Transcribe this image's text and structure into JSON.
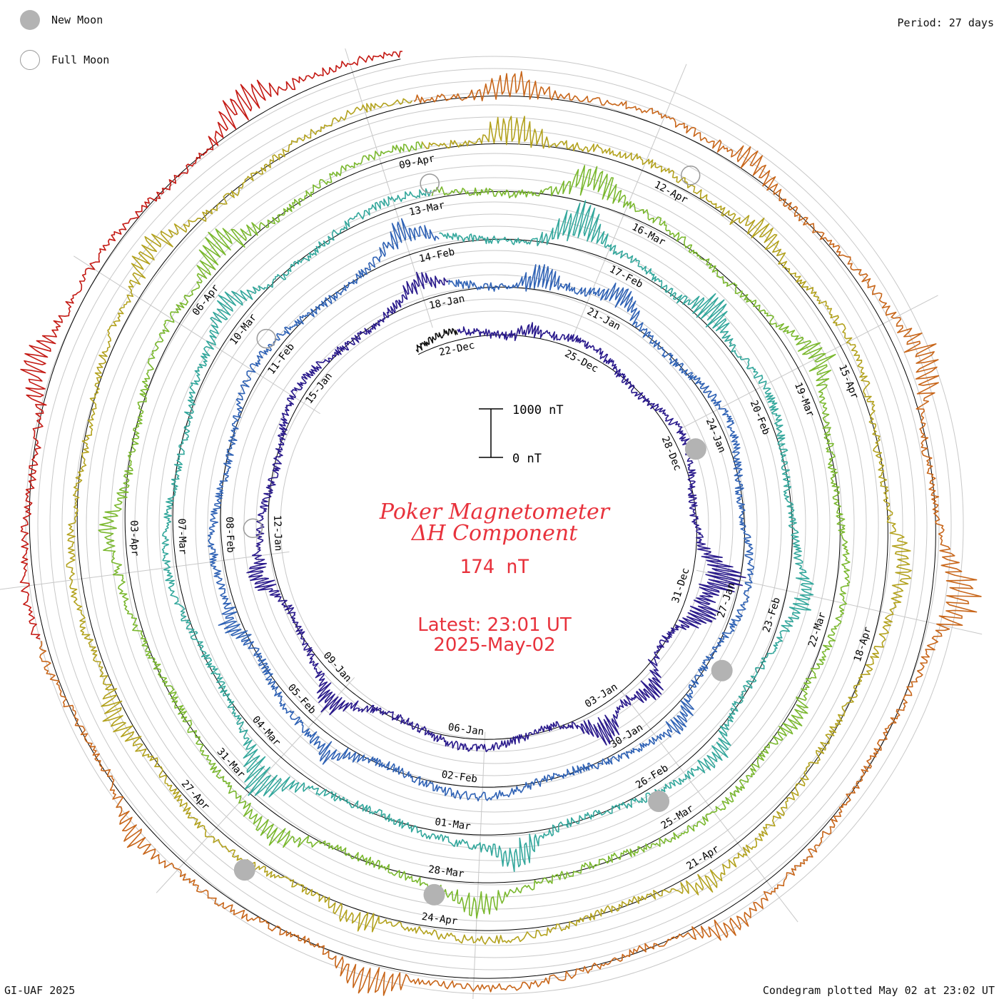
{
  "header": {
    "period": "Period: 27 days"
  },
  "legend": {
    "new_moon": "New Moon",
    "full_moon": "Full Moon"
  },
  "footer": {
    "credit": "GI-UAF 2025",
    "plotted": "Condegram plotted May 02 at 23:02 UT"
  },
  "center": {
    "title_line1": "Poker Magnetometer",
    "title_line2": "ΔH Component",
    "value": "174 nT",
    "latest": "Latest: 23:01 UT",
    "date": "2025-May-02",
    "scale_top": "1000 nT",
    "scale_bottom": "0 nT"
  },
  "colors": {
    "title": "#e8323c",
    "grid": "#c8c8c8",
    "baseline": "#000000",
    "moon_fill": "#b3b3b3",
    "moon_outline": "#9a9a9a"
  },
  "chart_data": {
    "type": "line",
    "chart_style": "condegram spiral (polar, one revolution per period, oldest at center)",
    "title": "Poker Magnetometer ΔH Component",
    "period_days": 27,
    "units": "nT",
    "scale_bar": [
      0,
      1000
    ],
    "latest_value": 174,
    "date_labels": [
      [
        "22-Dec",
        "25-Dec",
        "28-Dec",
        "31-Dec",
        "03-Jan",
        "06-Jan",
        "09-Jan",
        "12-Jan",
        "15-Jan"
      ],
      [
        "18-Jan",
        "21-Jan",
        "24-Jan",
        "27-Jan",
        "30-Jan",
        "02-Feb",
        "05-Feb",
        "08-Feb",
        "11-Feb"
      ],
      [
        "14-Feb",
        "17-Feb",
        "20-Feb",
        "23-Feb",
        "26-Feb",
        "01-Mar",
        "04-Mar",
        "07-Mar",
        "10-Mar"
      ],
      [
        "13-Mar",
        "16-Mar",
        "19-Mar",
        "22-Mar",
        "25-Mar",
        "28-Mar",
        "31-Mar",
        "03-Apr",
        "06-Apr"
      ],
      [
        "09-Apr",
        "12-Apr",
        "15-Apr",
        "18-Apr",
        "21-Apr",
        "24-Apr",
        "27-Apr"
      ]
    ],
    "series": [
      {
        "color": "#111111",
        "start_day": 0.0,
        "end_day": 1.0
      },
      {
        "color": "#2a1a8c",
        "start_day": 1.0,
        "end_day": 28.0
      },
      {
        "color": "#2f62b5",
        "start_day": 28.0,
        "end_day": 55.0
      },
      {
        "color": "#33a79c",
        "start_day": 55.0,
        "end_day": 82.0
      },
      {
        "color": "#7ab82e",
        "start_day": 82.0,
        "end_day": 109.0
      },
      {
        "color": "#b3a21e",
        "start_day": 109.0,
        "end_day": 136.0
      },
      {
        "color": "#c8661a",
        "start_day": 136.0,
        "end_day": 156.0
      },
      {
        "color": "#c41a14",
        "start_day": 156.0,
        "end_day": 163.0
      }
    ],
    "new_moons": [
      "29-Dec",
      "29-Jan",
      "27-Feb",
      "29-Mar",
      "27-Apr"
    ],
    "full_moons": [
      "13-Jan",
      "12-Feb",
      "14-Mar",
      "13-Apr"
    ],
    "disturbances": [
      {
        "day": 2.6,
        "amplitude_nT": 280
      },
      {
        "day": 9.5,
        "amplitude_nT": 900
      },
      {
        "day": 10.3,
        "amplitude_nT": 600
      },
      {
        "day": 12.0,
        "amplitude_nT": 520
      },
      {
        "day": 13.2,
        "amplitude_nT": 650
      },
      {
        "day": 18.5,
        "amplitude_nT": 450
      },
      {
        "day": 21.1,
        "amplitude_nT": 480
      },
      {
        "day": 27.5,
        "amplitude_nT": 350
      },
      {
        "day": 29.6,
        "amplitude_nT": 550
      },
      {
        "day": 31.0,
        "amplitude_nT": 500
      },
      {
        "day": 39.0,
        "amplitude_nT": 350
      },
      {
        "day": 45.0,
        "amplitude_nT": 420
      },
      {
        "day": 47.5,
        "amplitude_nT": 380
      },
      {
        "day": 54.5,
        "amplitude_nT": 500
      },
      {
        "day": 57.0,
        "amplitude_nT": 900
      },
      {
        "day": 59.2,
        "amplitude_nT": 650
      },
      {
        "day": 63.5,
        "amplitude_nT": 420
      },
      {
        "day": 66.0,
        "amplitude_nT": 380
      },
      {
        "day": 69.0,
        "amplitude_nT": 600
      },
      {
        "day": 72.5,
        "amplitude_nT": 850
      },
      {
        "day": 79.0,
        "amplitude_nT": 500
      },
      {
        "day": 84.0,
        "amplitude_nT": 700
      },
      {
        "day": 87.5,
        "amplitude_nT": 550
      },
      {
        "day": 92.0,
        "amplitude_nT": 400
      },
      {
        "day": 96.5,
        "amplitude_nT": 520
      },
      {
        "day": 99.0,
        "amplitude_nT": 450
      },
      {
        "day": 103.0,
        "amplitude_nT": 380
      },
      {
        "day": 106.5,
        "amplitude_nT": 700
      },
      {
        "day": 110.0,
        "amplitude_nT": 650
      },
      {
        "day": 113.0,
        "amplitude_nT": 480
      },
      {
        "day": 117.0,
        "amplitude_nT": 400
      },
      {
        "day": 121.0,
        "amplitude_nT": 350
      },
      {
        "day": 124.8,
        "amplitude_nT": 450
      },
      {
        "day": 128.0,
        "amplitude_nT": 500
      },
      {
        "day": 133.0,
        "amplitude_nT": 550
      },
      {
        "day": 137.0,
        "amplitude_nT": 500
      },
      {
        "day": 139.5,
        "amplitude_nT": 450
      },
      {
        "day": 142.0,
        "amplitude_nT": 700
      },
      {
        "day": 144.2,
        "amplitude_nT": 800
      },
      {
        "day": 148.0,
        "amplitude_nT": 450
      },
      {
        "day": 151.5,
        "amplitude_nT": 700
      },
      {
        "day": 154.0,
        "amplitude_nT": 420
      },
      {
        "day": 158.5,
        "amplitude_nT": 600
      },
      {
        "day": 161.5,
        "amplitude_nT": 650
      }
    ]
  }
}
